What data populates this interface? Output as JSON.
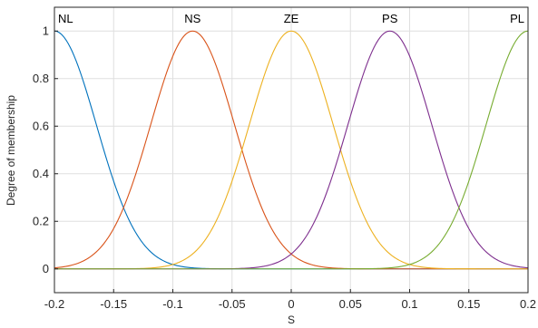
{
  "chart_data": {
    "type": "line",
    "title": "",
    "xlabel": "S",
    "ylabel": "Degree of membership",
    "xlim": [
      -0.2,
      0.2
    ],
    "ylim": [
      -0.1,
      1.1
    ],
    "grid": true,
    "x_ticks": [
      -0.2,
      -0.15,
      -0.1,
      -0.05,
      0,
      0.05,
      0.1,
      0.15,
      0.2
    ],
    "x_tick_labels": [
      "-0.2",
      "-0.15",
      "-0.1",
      "-0.05",
      "0",
      "0.05",
      "0.1",
      "0.15",
      "0.2"
    ],
    "y_ticks": [
      0,
      0.2,
      0.4,
      0.6,
      0.8,
      1
    ],
    "y_tick_labels": [
      "0",
      "0.2",
      "0.4",
      "0.6",
      "0.8",
      "1"
    ],
    "membership_function": "gaussian",
    "series": [
      {
        "name": "NL",
        "center": -0.2,
        "sigma": 0.0354,
        "color": "#0072BD"
      },
      {
        "name": "NS",
        "center": -0.0833,
        "sigma": 0.0354,
        "color": "#D95319"
      },
      {
        "name": "ZE",
        "center": 0.0,
        "sigma": 0.0354,
        "color": "#EDB120"
      },
      {
        "name": "PS",
        "center": 0.0833,
        "sigma": 0.0354,
        "color": "#7E2F8E"
      },
      {
        "name": "PL",
        "center": 0.2,
        "sigma": 0.0354,
        "color": "#77AC30"
      }
    ]
  }
}
